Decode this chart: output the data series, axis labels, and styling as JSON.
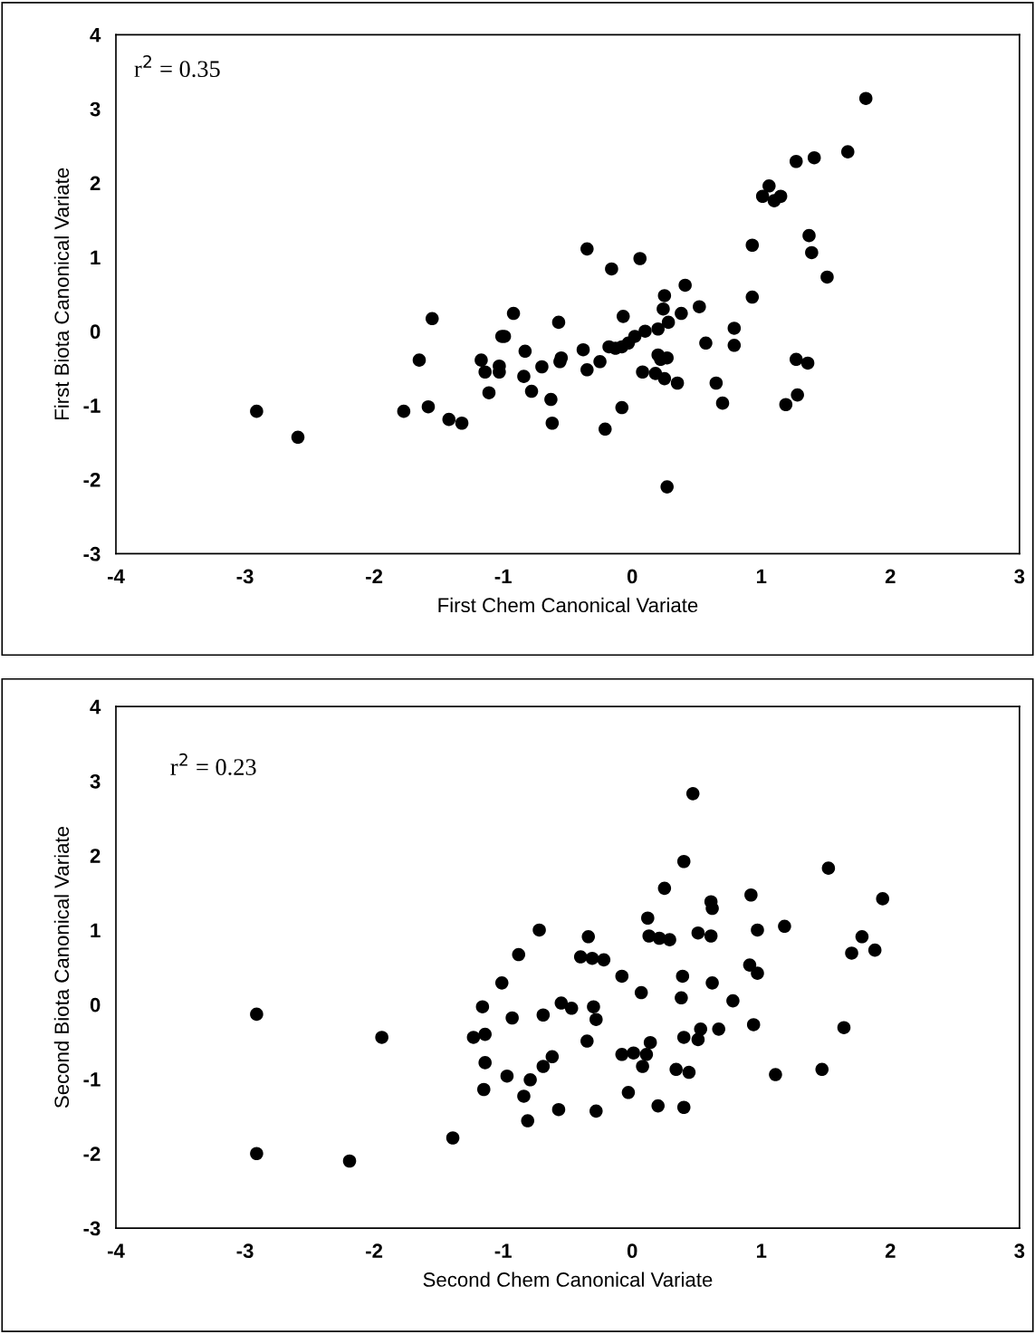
{
  "chart_data": [
    {
      "type": "scatter",
      "xlabel": "First Chem Canonical Variate",
      "ylabel": "First Biota Canonical Variate",
      "annotations": [
        "r$^{2}$ = 0.35"
      ],
      "xlim": [
        -4,
        3
      ],
      "ylim": [
        -3,
        4
      ],
      "xticks": [
        -4,
        -3,
        -2,
        -1,
        0,
        1,
        2,
        3
      ],
      "yticks": [
        -3,
        -2,
        -1,
        0,
        1,
        2,
        3,
        4
      ],
      "grid": false,
      "marker": "circle",
      "series": [
        {
          "color": "#000000",
          "x": [
            -2.91,
            -2.59,
            -1.77,
            -1.65,
            -1.58,
            -1.55,
            -1.42,
            -1.32,
            -1.17,
            -1.14,
            -1.11,
            -1.03,
            -1.03,
            -1.01,
            -0.99,
            -0.92,
            -0.84,
            -0.83,
            -0.78,
            -0.7,
            -0.63,
            -0.62,
            -0.57,
            -0.55,
            -0.56,
            -0.38,
            -0.35,
            -0.35,
            -0.25,
            -0.21,
            -0.18,
            -0.16,
            -0.13,
            -0.08,
            -0.08,
            -0.07,
            0.27,
            -0.03,
            0.02,
            0.06,
            0.08,
            0.1,
            0.18,
            0.2,
            0.2,
            0.22,
            0.24,
            0.25,
            0.25,
            0.27,
            0.28,
            0.35,
            0.38,
            0.41,
            0.52,
            0.57,
            0.65,
            0.7,
            0.79,
            0.79,
            0.93,
            0.93,
            1.01,
            1.06,
            1.1,
            1.15,
            1.19,
            1.27,
            1.27,
            1.28,
            1.36,
            1.37,
            1.39,
            1.41,
            1.51,
            1.67,
            1.81
          ],
          "values": [
            -1.08,
            -1.43,
            -1.08,
            -0.39,
            -1.02,
            0.17,
            -1.19,
            -1.24,
            -0.39,
            -0.55,
            -0.83,
            -0.47,
            -0.55,
            -0.07,
            -0.07,
            0.24,
            -0.61,
            -0.27,
            -0.81,
            -0.48,
            -0.92,
            -1.24,
            0.12,
            -0.36,
            -0.41,
            -0.25,
            1.11,
            -0.52,
            -0.41,
            -1.32,
            -0.21,
            0.84,
            -0.23,
            -1.03,
            -0.21,
            0.2,
            -2.1,
            -0.16,
            -0.07,
            0.98,
            -0.55,
            0.0,
            -0.57,
            -0.32,
            0.03,
            -0.38,
            0.3,
            0.48,
            -0.64,
            -0.36,
            0.12,
            -0.7,
            0.24,
            0.62,
            0.33,
            -0.16,
            -0.7,
            -0.97,
            0.04,
            -0.19,
            1.16,
            0.46,
            1.82,
            1.96,
            1.76,
            1.82,
            -0.99,
            -0.38,
            2.29,
            -0.86,
            -0.43,
            1.29,
            1.06,
            2.34,
            0.73,
            2.42,
            3.14
          ]
        }
      ]
    },
    {
      "type": "scatter",
      "xlabel": "Second Chem Canonical Variate",
      "ylabel": "Second Biota Canonical Variate",
      "annotations": [
        "r$^{2}$ = 0.23"
      ],
      "xlim": [
        -4,
        3
      ],
      "ylim": [
        -3,
        4
      ],
      "xticks": [
        -4,
        -3,
        -2,
        -1,
        0,
        1,
        2,
        3
      ],
      "yticks": [
        -3,
        -2,
        -1,
        0,
        1,
        2,
        3,
        4
      ],
      "grid": false,
      "marker": "circle",
      "series": [
        {
          "color": "#000000",
          "x": [
            -2.91,
            -2.91,
            -2.19,
            -1.94,
            -1.39,
            -1.23,
            -1.14,
            -1.16,
            -1.15,
            -1.14,
            -1.01,
            -0.97,
            -0.93,
            -0.88,
            -0.84,
            -0.81,
            -0.79,
            -0.72,
            -0.69,
            -0.69,
            -0.62,
            -0.57,
            -0.55,
            -0.47,
            -0.4,
            -0.35,
            -0.34,
            -0.31,
            -0.3,
            -0.28,
            -0.28,
            -0.22,
            -0.08,
            -0.08,
            -0.03,
            0.01,
            0.07,
            0.08,
            0.11,
            0.12,
            0.13,
            0.14,
            0.2,
            0.21,
            0.25,
            0.29,
            0.34,
            0.38,
            0.39,
            0.4,
            0.4,
            0.4,
            0.44,
            0.47,
            0.51,
            0.51,
            0.53,
            0.61,
            0.62,
            0.61,
            0.62,
            0.67,
            0.78,
            0.91,
            0.92,
            0.94,
            0.97,
            0.97,
            1.11,
            1.18,
            1.47,
            1.52,
            1.64,
            1.7,
            1.78,
            1.88,
            1.94
          ],
          "values": [
            -0.13,
            -2.0,
            -2.1,
            -0.44,
            -1.79,
            -0.44,
            -0.4,
            -0.03,
            -1.14,
            -0.78,
            0.29,
            -0.96,
            -0.18,
            0.67,
            -1.23,
            -1.56,
            -1.01,
            1.0,
            -0.14,
            -0.83,
            -0.7,
            -1.41,
            0.02,
            -0.05,
            0.64,
            -0.49,
            0.91,
            0.62,
            -0.03,
            -0.2,
            -1.43,
            0.6,
            -0.67,
            0.38,
            -1.18,
            -0.65,
            0.16,
            -0.83,
            -0.67,
            1.16,
            0.92,
            -0.51,
            -1.36,
            0.89,
            1.56,
            0.87,
            -0.87,
            0.09,
            0.38,
            1.92,
            -0.44,
            -1.38,
            -0.91,
            2.83,
            -0.47,
            0.96,
            -0.33,
            1.38,
            1.29,
            0.92,
            0.29,
            -0.33,
            0.05,
            0.53,
            1.47,
            -0.27,
            1.0,
            0.42,
            -0.94,
            1.05,
            -0.87,
            1.83,
            -0.31,
            0.69,
            0.91,
            0.73,
            1.42
          ]
        }
      ]
    }
  ]
}
